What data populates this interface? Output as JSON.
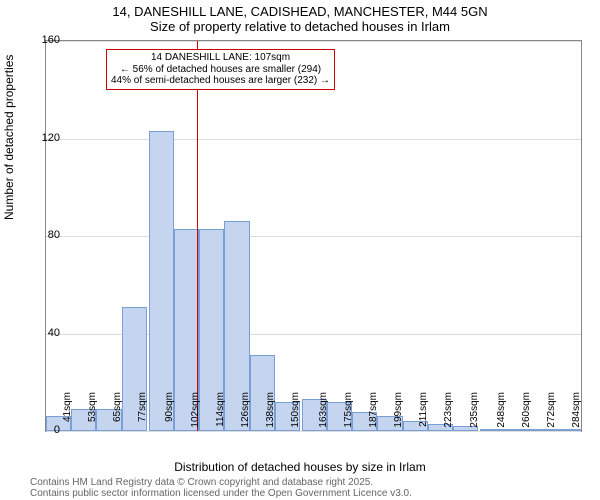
{
  "title": {
    "line1": "14, DANESHILL LANE, CADISHEAD, MANCHESTER, M44 5GN",
    "line2": "Size of property relative to detached houses in Irlam"
  },
  "chart": {
    "type": "histogram",
    "ylabel": "Number of detached properties",
    "xlabel": "Distribution of detached houses by size in Irlam",
    "ylim": [
      0,
      160
    ],
    "ytick_step": 40,
    "xlim": [
      35,
      290
    ],
    "bar_fill": "#c6d5ef",
    "bar_border": "#7a9fd4",
    "grid_color": "#dddddd",
    "background": "#ffffff",
    "bins": [
      {
        "label": "41sqm",
        "x": 41,
        "value": 6
      },
      {
        "label": "53sqm",
        "x": 53,
        "value": 9
      },
      {
        "label": "65sqm",
        "x": 65,
        "value": 9
      },
      {
        "label": "77sqm",
        "x": 77,
        "value": 51
      },
      {
        "label": "90sqm",
        "x": 90,
        "value": 123
      },
      {
        "label": "102sqm",
        "x": 102,
        "value": 83
      },
      {
        "label": "114sqm",
        "x": 114,
        "value": 83
      },
      {
        "label": "126sqm",
        "x": 126,
        "value": 86
      },
      {
        "label": "138sqm",
        "x": 138,
        "value": 31
      },
      {
        "label": "150sqm",
        "x": 150,
        "value": 12
      },
      {
        "label": "163sqm",
        "x": 163,
        "value": 13
      },
      {
        "label": "175sqm",
        "x": 175,
        "value": 12
      },
      {
        "label": "187sqm",
        "x": 187,
        "value": 8
      },
      {
        "label": "199sqm",
        "x": 199,
        "value": 6
      },
      {
        "label": "211sqm",
        "x": 211,
        "value": 4
      },
      {
        "label": "223sqm",
        "x": 223,
        "value": 3
      },
      {
        "label": "235sqm",
        "x": 235,
        "value": 2
      },
      {
        "label": "248sqm",
        "x": 248,
        "value": 1
      },
      {
        "label": "260sqm",
        "x": 260,
        "value": 1
      },
      {
        "label": "272sqm",
        "x": 272,
        "value": 1
      },
      {
        "label": "284sqm",
        "x": 284,
        "value": 1
      }
    ],
    "reference_line": {
      "x": 107,
      "color": "#cc0000"
    },
    "annotation": {
      "line1": "14 DANESHILL LANE: 107sqm",
      "line2": "← 56% of detached houses are smaller (294)",
      "line3": "44% of semi-detached houses are larger (232) →",
      "border_color": "#cc0000"
    }
  },
  "footer": {
    "line1": "Contains HM Land Registry data © Crown copyright and database right 2025.",
    "line2": "Contains public sector information licensed under the Open Government Licence v3.0."
  }
}
